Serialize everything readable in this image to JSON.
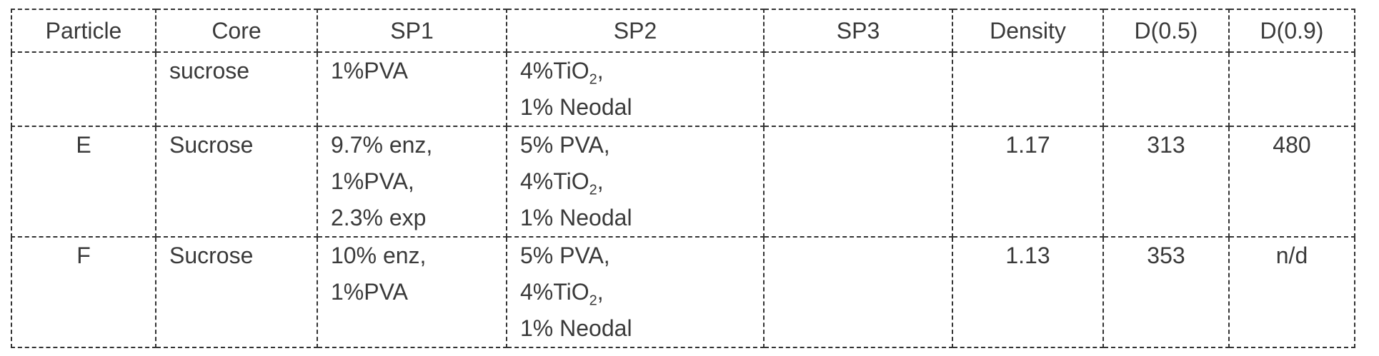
{
  "table": {
    "headers": [
      "Particle",
      "Core",
      "SP1",
      "SP2",
      "SP3",
      "Density",
      "D(0.5)",
      "D(0.9)"
    ],
    "rows": [
      {
        "particle": "",
        "core": "sucrose",
        "sp1": [
          "1%PVA"
        ],
        "sp2": [
          [
            "4%TiO",
            "2",
            ","
          ],
          [
            "1% Neodal"
          ]
        ],
        "sp3": "",
        "density": "",
        "d05": "",
        "d09": ""
      },
      {
        "particle": "E",
        "core": "Sucrose",
        "sp1": [
          "9.7% enz,",
          "1%PVA,",
          "2.3% exp"
        ],
        "sp2": [
          [
            "5% PVA,"
          ],
          [
            "4%TiO",
            "2",
            ","
          ],
          [
            "1% Neodal"
          ]
        ],
        "sp3": "",
        "density": "1.17",
        "d05": "313",
        "d09": "480"
      },
      {
        "particle": "F",
        "core": "Sucrose",
        "sp1": [
          "10% enz,",
          "1%PVA"
        ],
        "sp2": [
          [
            "5% PVA,"
          ],
          [
            "4%TiO",
            "2",
            ","
          ],
          [
            "1% Neodal"
          ]
        ],
        "sp3": "",
        "density": "1.13",
        "d05": "353",
        "d09": "n/d"
      }
    ]
  }
}
